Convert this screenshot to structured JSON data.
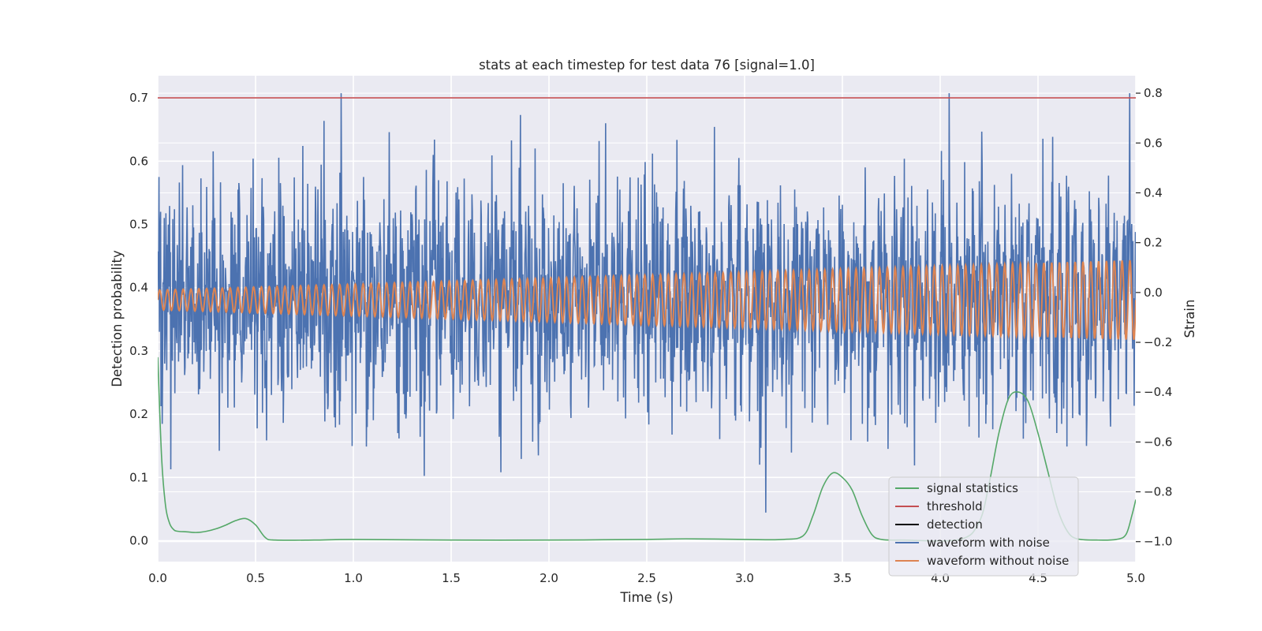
{
  "chart_data": {
    "type": "line",
    "title": "stats at each timestep for test data 76 [signal=1.0]",
    "xlabel": "Time (s)",
    "ylabel": "Detection probability",
    "y2label": "Strain",
    "xlim": [
      0.0,
      5.0
    ],
    "ylim": [
      -0.033,
      0.735
    ],
    "y2lim": [
      -1.08,
      0.87
    ],
    "xticks": [
      "0.0",
      "0.5",
      "1.0",
      "1.5",
      "2.0",
      "2.5",
      "3.0",
      "3.5",
      "4.0",
      "4.5",
      "5.0"
    ],
    "yticks": [
      "0.0",
      "0.1",
      "0.2",
      "0.3",
      "0.4",
      "0.5",
      "0.6",
      "0.7"
    ],
    "y2ticks": [
      "−1.0",
      "−0.8",
      "−0.6",
      "−0.4",
      "−0.2",
      "0.0",
      "0.2",
      "0.4",
      "0.6",
      "0.8"
    ],
    "grid": true,
    "legend_position": "lower right",
    "threshold": 0.7,
    "series": [
      {
        "name": "signal statistics",
        "axis": "left",
        "color": "#55a868",
        "x": [
          0.0,
          0.02,
          0.04,
          0.06,
          0.08,
          0.1,
          0.15,
          0.2,
          0.25,
          0.3,
          0.35,
          0.4,
          0.45,
          0.5,
          0.55,
          0.6,
          0.8,
          1.0,
          1.5,
          2.0,
          2.5,
          2.7,
          3.0,
          3.2,
          3.3,
          3.35,
          3.4,
          3.45,
          3.5,
          3.55,
          3.6,
          3.65,
          3.7,
          3.8,
          4.1,
          4.2,
          4.25,
          4.3,
          4.35,
          4.4,
          4.45,
          4.5,
          4.55,
          4.6,
          4.65,
          4.7,
          4.8,
          4.9,
          4.95,
          4.98,
          5.0
        ],
        "values": [
          0.29,
          0.13,
          0.055,
          0.028,
          0.018,
          0.015,
          0.014,
          0.013,
          0.015,
          0.019,
          0.025,
          0.032,
          0.035,
          0.025,
          0.005,
          0.001,
          0.001,
          0.002,
          0.001,
          0.001,
          0.002,
          0.003,
          0.002,
          0.002,
          0.008,
          0.04,
          0.085,
          0.107,
          0.1,
          0.08,
          0.04,
          0.01,
          0.002,
          0.001,
          0.002,
          0.03,
          0.09,
          0.17,
          0.225,
          0.235,
          0.22,
          0.17,
          0.11,
          0.05,
          0.015,
          0.003,
          0.001,
          0.002,
          0.01,
          0.04,
          0.065
        ]
      },
      {
        "name": "threshold",
        "axis": "left",
        "color": "#c44e52"
      },
      {
        "name": "detection",
        "axis": "left",
        "color": "#000000"
      },
      {
        "name": "waveform with noise",
        "axis": "right",
        "color": "#4c72b0",
        "noise_amplitude": 0.22,
        "noise_max": 0.8,
        "noise_min": -0.95
      },
      {
        "name": "waveform without noise",
        "axis": "right",
        "color": "#dd8452",
        "cycles": 125,
        "amplitude_start": 0.04,
        "amplitude_end": 0.16,
        "offset": -0.03
      }
    ]
  }
}
